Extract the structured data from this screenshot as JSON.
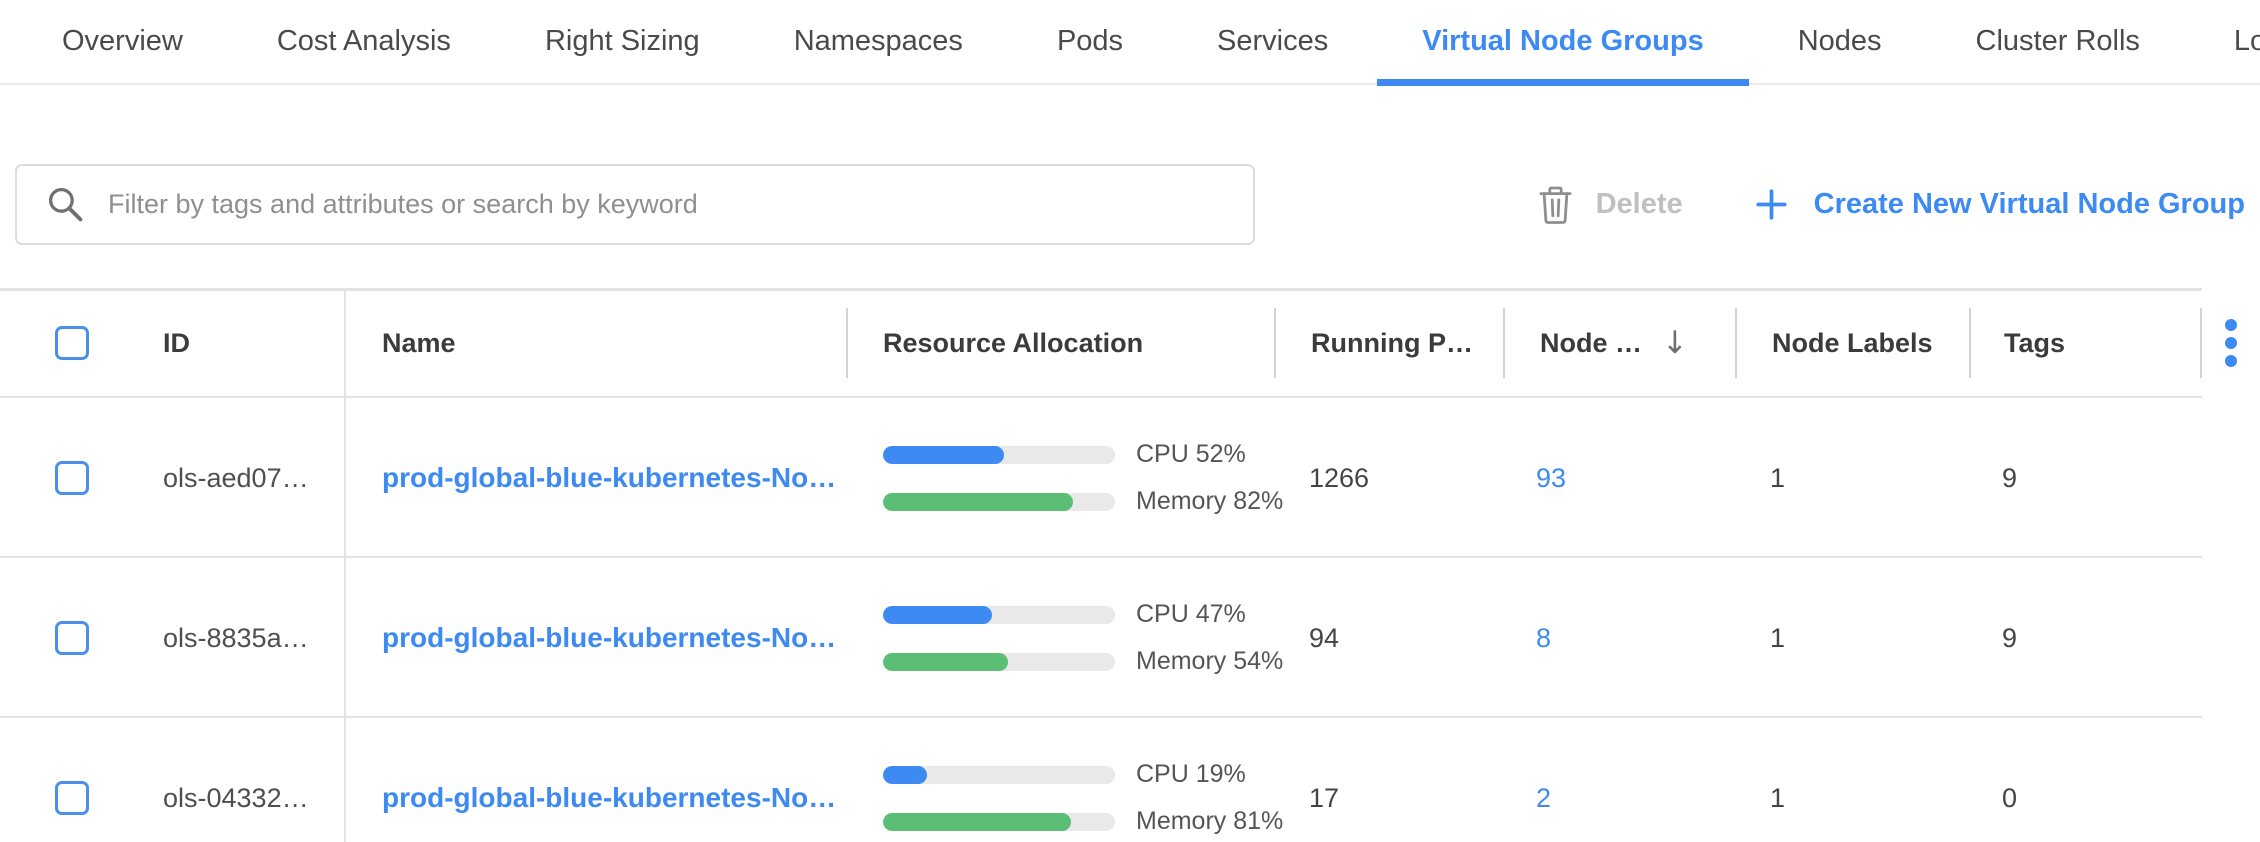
{
  "tabs": [
    {
      "label": "Overview",
      "active": false
    },
    {
      "label": "Cost Analysis",
      "active": false
    },
    {
      "label": "Right Sizing",
      "active": false
    },
    {
      "label": "Namespaces",
      "active": false
    },
    {
      "label": "Pods",
      "active": false
    },
    {
      "label": "Services",
      "active": false
    },
    {
      "label": "Virtual Node Groups",
      "active": true
    },
    {
      "label": "Nodes",
      "active": false
    },
    {
      "label": "Cluster Rolls",
      "active": false
    },
    {
      "label": "Log",
      "active": false
    }
  ],
  "toolbar": {
    "search_placeholder": "Filter by tags and attributes or search by keyword",
    "delete_label": "Delete",
    "create_label": "Create New Virtual Node Group"
  },
  "table": {
    "header": {
      "id": "ID",
      "name": "Name",
      "resource": "Resource Allocation",
      "running_pods": "Running P…",
      "nodes": "Node …",
      "sort_icon": "↓",
      "node_labels": "Node Labels",
      "tags": "Tags"
    },
    "rows": [
      {
        "id": "ols-aed07…",
        "name": "prod-global-blue-kubernetes-No…",
        "cpu_pct": 52,
        "cpu_label": "CPU 52%",
        "mem_pct": 82,
        "mem_label": "Memory 82%",
        "running_pods": "1266",
        "nodes": "93",
        "node_labels": "1",
        "tags": "9"
      },
      {
        "id": "ols-8835a…",
        "name": "prod-global-blue-kubernetes-No…",
        "cpu_pct": 47,
        "cpu_label": "CPU 47%",
        "mem_pct": 54,
        "mem_label": "Memory 54%",
        "running_pods": "94",
        "nodes": "8",
        "node_labels": "1",
        "tags": "9"
      },
      {
        "id": "ols-04332…",
        "name": "prod-global-blue-kubernetes-No…",
        "cpu_pct": 19,
        "cpu_label": "CPU 19%",
        "mem_pct": 81,
        "mem_label": "Memory 81%",
        "running_pods": "17",
        "nodes": "2",
        "node_labels": "1",
        "tags": "0"
      }
    ]
  },
  "colors": {
    "accent_blue": "#3d8af2",
    "bar_green": "#5cbe74",
    "bar_track": "#e9e9e9",
    "checkbox_border": "#4a90e9",
    "disabled_text": "#c0c0c0"
  }
}
